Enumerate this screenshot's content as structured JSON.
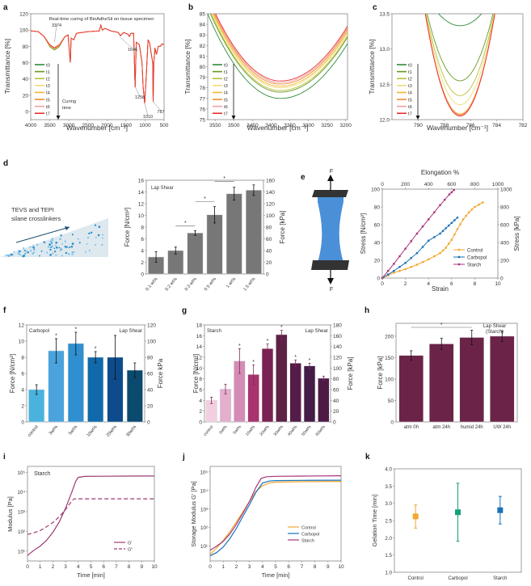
{
  "chart_data": [
    {
      "panel": "a",
      "type": "line",
      "title": "Real-time curing of BioAdheSil on tissue specimen",
      "xlabel": "Wavenumber [cm⁻¹]",
      "ylabel": "Transmittance [%]",
      "xlim": [
        4000,
        500
      ],
      "ylim": [
        -10,
        120
      ],
      "xticks": [
        4000,
        3500,
        3000,
        2500,
        2000,
        1500,
        1000,
        500
      ],
      "yticks": [
        0,
        20,
        40,
        60,
        80,
        100,
        120
      ],
      "annotations": [
        "3374",
        "1646",
        "1258",
        "1010",
        "787"
      ],
      "legend": [
        "t0",
        "t1",
        "t2",
        "t3",
        "t4",
        "t5",
        "t6",
        "t7"
      ],
      "legend_note": "Curing time",
      "spectrum": [
        [
          4000,
          99
        ],
        [
          3800,
          98
        ],
        [
          3650,
          92
        ],
        [
          3500,
          82
        ],
        [
          3374,
          78
        ],
        [
          3250,
          82
        ],
        [
          3100,
          92
        ],
        [
          3020,
          94
        ],
        [
          2960,
          60
        ],
        [
          2940,
          90
        ],
        [
          2870,
          88
        ],
        [
          2800,
          96
        ],
        [
          2500,
          98
        ],
        [
          2200,
          99
        ],
        [
          2160,
          106
        ],
        [
          2120,
          100
        ],
        [
          2050,
          102
        ],
        [
          1900,
          99
        ],
        [
          1700,
          97
        ],
        [
          1646,
          93
        ],
        [
          1560,
          97
        ],
        [
          1450,
          95
        ],
        [
          1410,
          92
        ],
        [
          1370,
          96
        ],
        [
          1300,
          96
        ],
        [
          1260,
          30
        ],
        [
          1230,
          85
        ],
        [
          1150,
          82
        ],
        [
          1080,
          60
        ],
        [
          1050,
          30
        ],
        [
          1010,
          10
        ],
        [
          970,
          40
        ],
        [
          920,
          88
        ],
        [
          880,
          84
        ],
        [
          840,
          72
        ],
        [
          800,
          60
        ],
        [
          787,
          12
        ],
        [
          770,
          60
        ],
        [
          740,
          78
        ],
        [
          700,
          70
        ],
        [
          650,
          80
        ],
        [
          600,
          80
        ],
        [
          550,
          83
        ],
        [
          500,
          82
        ]
      ]
    },
    {
      "panel": "b",
      "type": "line",
      "xlabel": "Wavenumber [cm⁻¹]",
      "ylabel": "Transmittance [%]",
      "xlim": [
        3570,
        3195
      ],
      "ylim": [
        75,
        85
      ],
      "xticks": [
        3550,
        3500,
        3450,
        3400,
        3350,
        3300,
        3250,
        3200
      ],
      "yticks": [
        75,
        76,
        77,
        78,
        79,
        80,
        81,
        82,
        83,
        84,
        85
      ],
      "legend": [
        "t0",
        "t1",
        "t2",
        "t3",
        "t4",
        "t5",
        "t6",
        "t7"
      ],
      "minima": [
        77.0,
        77.6,
        77.75,
        78.0,
        78.15,
        78.35,
        78.5,
        78.65
      ]
    },
    {
      "panel": "c",
      "type": "line",
      "xlabel": "Wavenumber [cm⁻¹]",
      "ylabel": "Transmittance [%]",
      "xlim": [
        792,
        782
      ],
      "ylim": [
        12.0,
        13.5
      ],
      "xticks": [
        790,
        788,
        786,
        784,
        782
      ],
      "yticks": [
        12.0,
        12.5,
        13.0,
        13.5
      ],
      "legend": [
        "t0",
        "t1",
        "t2",
        "t3",
        "t4",
        "t5",
        "t6",
        "t7"
      ],
      "minima": [
        13.33,
        12.55,
        12.34,
        12.21,
        12.08,
        12.07,
        12.06,
        12.05
      ]
    },
    {
      "panel": "d",
      "type": "bar",
      "annotation": "Lap Shear",
      "schematic_label": "TEVS and TEPI silane crosslinkers",
      "categories": [
        "0.1 wt%",
        "0.2 wt%",
        "0.3 wt%",
        "0.5 wt%",
        "1 wt%",
        "1.5 wt%"
      ],
      "values": [
        2.9,
        4.0,
        7.0,
        10.1,
        13.7,
        14.3
      ],
      "errors": [
        0.9,
        0.6,
        0.4,
        1.4,
        1.1,
        0.9
      ],
      "significance": [
        [
          1,
          2
        ],
        [
          2,
          3
        ],
        [
          3,
          4
        ]
      ],
      "ylabel": "Force [N/cm²]",
      "ylabel_right": "Force [kPa]",
      "ylim": [
        0,
        16
      ],
      "ylim_right": [
        0,
        160
      ],
      "yticks": [
        0,
        2,
        4,
        6,
        8,
        10,
        12,
        14,
        16
      ],
      "yticks_right": [
        0,
        20,
        40,
        60,
        80,
        100,
        120,
        140,
        160
      ]
    },
    {
      "panel": "e",
      "type": "line",
      "xlabel": "Strain",
      "xlabel_top": "Elongation %",
      "ylabel": "Stress [N/cm²]",
      "ylabel_right": "Stress [kPa]",
      "xlim": [
        0,
        10
      ],
      "ylim": [
        0,
        100
      ],
      "xticks": [
        0,
        2,
        4,
        6,
        8,
        10
      ],
      "xticks_top": [
        0,
        200,
        400,
        600,
        800,
        1000
      ],
      "yticks": [
        0,
        20,
        40,
        60,
        80,
        100
      ],
      "yticks_right": [
        0,
        200,
        400,
        600,
        800,
        1000
      ],
      "schematic_force_label": "F",
      "series": [
        {
          "name": "Control",
          "color": "#f0a830",
          "points": [
            [
              0,
              0
            ],
            [
              1,
              6
            ],
            [
              2,
              10
            ],
            [
              3,
              15
            ],
            [
              4,
              21
            ],
            [
              5,
              28
            ],
            [
              5.5,
              34
            ],
            [
              6,
              43
            ],
            [
              6.5,
              55
            ],
            [
              7,
              66
            ],
            [
              7.5,
              74
            ],
            [
              8,
              80
            ],
            [
              8.7,
              85
            ]
          ]
        },
        {
          "name": "Carbopol",
          "color": "#1a72b8",
          "points": [
            [
              0,
              0
            ],
            [
              1,
              8
            ],
            [
              2,
              17
            ],
            [
              3,
              28
            ],
            [
              4,
              42
            ],
            [
              5,
              50
            ],
            [
              5.5,
              56
            ],
            [
              6,
              62
            ],
            [
              6.5,
              68
            ]
          ]
        },
        {
          "name": "Starch",
          "color": "#a8347a",
          "points": [
            [
              0,
              0
            ],
            [
              1,
              16
            ],
            [
              2,
              33
            ],
            [
              3,
              50
            ],
            [
              4,
              66
            ],
            [
              5,
              82
            ],
            [
              5.8,
              94
            ],
            [
              6.2,
              99
            ]
          ]
        }
      ]
    },
    {
      "panel": "f",
      "type": "bar",
      "annotation_left": "Carbopol",
      "annotation_right": "Lap Shear",
      "categories": [
        "control",
        "3wt%",
        "5wt%",
        "10wt%",
        "20wt%",
        "30wt%"
      ],
      "values": [
        4.0,
        8.8,
        9.7,
        8.0,
        8.0,
        6.4
      ],
      "errors": [
        0.6,
        1.5,
        1.4,
        0.7,
        2.7,
        0.9
      ],
      "significant": [
        false,
        true,
        true,
        true,
        false,
        false
      ],
      "colors": [
        "#4ab3dd",
        "#4aa3dd",
        "#2f8fd0",
        "#1069aa",
        "#0d4b8c",
        "#0b4a6e"
      ],
      "ylabel": "Force [N/cm²]",
      "ylabel_right": "Force kPa",
      "ylim": [
        0,
        12
      ],
      "ylim_right": [
        0,
        120
      ],
      "yticks": [
        0,
        2,
        4,
        6,
        8,
        10,
        12
      ],
      "yticks_right": [
        0,
        20,
        40,
        60,
        80,
        100,
        120
      ]
    },
    {
      "panel": "g",
      "type": "bar",
      "annotation_left": "Starch",
      "annotation_right": "Lap Shear",
      "categories": [
        "control",
        "3wt%",
        "5wt%",
        "10wt%",
        "20wt%",
        "30wt%",
        "40wt%",
        "50wt%",
        "60wt%"
      ],
      "values": [
        4.0,
        6.1,
        11.3,
        8.8,
        13.6,
        16.2,
        10.9,
        10.4,
        8.1
      ],
      "errors": [
        0.6,
        0.9,
        2.3,
        1.8,
        0.9,
        0.8,
        0.6,
        0.5,
        0.4
      ],
      "significant": [
        false,
        false,
        true,
        true,
        true,
        true,
        true,
        true,
        false
      ],
      "colors": [
        "#f2cfe0",
        "#e4aecd",
        "#d48cb6",
        "#a8336f",
        "#7a2154",
        "#5e2146",
        "#541c48",
        "#441a46",
        "#4e1a45"
      ],
      "ylabel": "Force [N/cm²]",
      "ylabel_right": "Force [kPa]",
      "ylim": [
        0,
        18
      ],
      "ylim_right": [
        0,
        180
      ],
      "yticks": [
        0,
        2,
        4,
        6,
        8,
        10,
        12,
        14,
        16,
        18
      ],
      "yticks_right": [
        0,
        20,
        40,
        60,
        80,
        100,
        120,
        140,
        160,
        180
      ]
    },
    {
      "panel": "h",
      "type": "bar",
      "annotation": "Lap Shear (Starch)",
      "categories": [
        "atm 0h",
        "atm 24h",
        "humid 24h",
        "UW 24h"
      ],
      "values": [
        155,
        182,
        197,
        200
      ],
      "errors": [
        11,
        13,
        17,
        12
      ],
      "significance": [
        [
          0,
          2
        ]
      ],
      "color": "#6b2448",
      "ylabel": "Force [kPa]",
      "ylim": [
        0,
        230
      ],
      "yticks": [
        0,
        50,
        100,
        150,
        200
      ]
    },
    {
      "panel": "i",
      "type": "line",
      "yscale": "log",
      "annotation": "Starch",
      "xlabel": "Time [min]",
      "ylabel": "Modulus [Pa]",
      "xlim": [
        0,
        10
      ],
      "ylim_log10": [
        0.5,
        5.3
      ],
      "xticks": [
        0,
        1,
        2,
        3,
        4,
        5,
        6,
        7,
        8,
        9,
        10
      ],
      "yticks": [
        "10¹",
        "10²",
        "10³",
        "10⁴",
        "10⁵"
      ],
      "series": [
        {
          "name": "G'",
          "style": "solid",
          "color": "#9c3a74",
          "points": [
            [
              0,
              6
            ],
            [
              0.5,
              11
            ],
            [
              1,
              18
            ],
            [
              1.5,
              35
            ],
            [
              2,
              90
            ],
            [
              2.5,
              300
            ],
            [
              3,
              1500
            ],
            [
              3.5,
              10000
            ],
            [
              3.8,
              35000
            ],
            [
              4,
              55000
            ],
            [
              4.5,
              62000
            ],
            [
              6,
              63000
            ],
            [
              8,
              64000
            ],
            [
              10,
              65000
            ]
          ]
        },
        {
          "name": "G\"",
          "style": "dashed",
          "color": "#9c3a74",
          "points": [
            [
              0,
              70
            ],
            [
              0.5,
              85
            ],
            [
              1,
              110
            ],
            [
              1.5,
              170
            ],
            [
              2,
              280
            ],
            [
              2.5,
              550
            ],
            [
              3,
              1300
            ],
            [
              3.5,
              3500
            ],
            [
              3.7,
              4500
            ],
            [
              5,
              4500
            ],
            [
              10,
              4500
            ]
          ]
        }
      ]
    },
    {
      "panel": "j",
      "type": "line",
      "yscale": "log",
      "xlabel": "Time [min]",
      "ylabel": "Storage Modulus G' [Pa]",
      "xlim": [
        0,
        10
      ],
      "ylim_log10": [
        0.2,
        5.3
      ],
      "xticks": [
        0,
        1,
        2,
        3,
        4,
        5,
        6,
        7,
        8,
        9,
        10
      ],
      "yticks": [
        "10¹",
        "10²",
        "10³",
        "10⁴",
        "10⁵"
      ],
      "series": [
        {
          "name": "Control",
          "color": "#f0a830",
          "points": [
            [
              0,
              3.5
            ],
            [
              0.5,
              8
            ],
            [
              1,
              20
            ],
            [
              1.5,
              60
            ],
            [
              2,
              200
            ],
            [
              2.5,
              700
            ],
            [
              3,
              2500
            ],
            [
              3.5,
              9000
            ],
            [
              4,
              18000
            ],
            [
              4.5,
              25000
            ],
            [
              5,
              28000
            ],
            [
              7,
              30000
            ],
            [
              10,
              31000
            ]
          ]
        },
        {
          "name": "Carbopol",
          "color": "#1a72b8",
          "points": [
            [
              0,
              3
            ],
            [
              0.5,
              4.5
            ],
            [
              1,
              9
            ],
            [
              1.5,
              25
            ],
            [
              2,
              90
            ],
            [
              2.5,
              400
            ],
            [
              3,
              1700
            ],
            [
              3.5,
              8000
            ],
            [
              4,
              25000
            ],
            [
              4.5,
              32000
            ],
            [
              5,
              34000
            ],
            [
              7,
              35000
            ],
            [
              10,
              36000
            ]
          ]
        },
        {
          "name": "Starch",
          "color": "#a8347a",
          "points": [
            [
              0,
              6
            ],
            [
              0.5,
              10
            ],
            [
              1,
              18
            ],
            [
              1.5,
              45
            ],
            [
              2,
              150
            ],
            [
              2.5,
              600
            ],
            [
              3,
              2500
            ],
            [
              3.5,
              15000
            ],
            [
              3.9,
              45000
            ],
            [
              4.3,
              55000
            ],
            [
              5,
              58000
            ],
            [
              7,
              60000
            ],
            [
              10,
              62000
            ]
          ]
        }
      ]
    },
    {
      "panel": "k",
      "type": "scatter",
      "categories": [
        "Control",
        "Carbopol",
        "Starch"
      ],
      "values": [
        2.62,
        2.74,
        2.8
      ],
      "error_low": [
        2.28,
        1.9,
        2.4
      ],
      "error_high": [
        2.95,
        3.58,
        3.2
      ],
      "colors": [
        "#f0a830",
        "#13a07a",
        "#1a72b8"
      ],
      "ylabel": "Gelation Time [min]",
      "ylim": [
        1.0,
        4.0
      ],
      "yticks": [
        "1.0",
        "1.5",
        "2.0",
        "2.5",
        "3.0",
        "3.5",
        "4.0"
      ]
    }
  ],
  "panel_labels": [
    "a",
    "b",
    "c",
    "d",
    "e",
    "f",
    "g",
    "h",
    "i",
    "j",
    "k"
  ],
  "time_colors": [
    "#2d8a3a",
    "#6a9a22",
    "#b8c03c",
    "#f0dc78",
    "#f2b632",
    "#f08a30",
    "#f2a0a0",
    "#e83030"
  ]
}
